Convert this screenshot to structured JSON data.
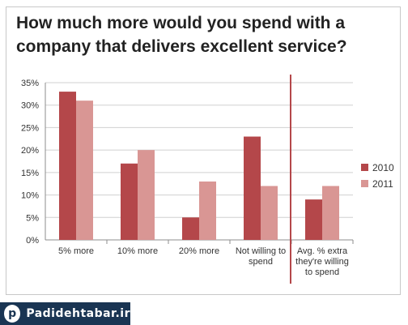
{
  "title": "How much more would you spend with a\ncompany that delivers excellent service?",
  "brand": {
    "logo_letter": "p",
    "text": "Padidehtabar.ir"
  },
  "chart_data": {
    "type": "bar",
    "categories": [
      [
        "5% more"
      ],
      [
        "10% more"
      ],
      [
        "20% more"
      ],
      [
        "Not willing to",
        "spend"
      ],
      [
        "Avg. % extra",
        "they're willing",
        "to spend"
      ]
    ],
    "series": [
      {
        "name": "2010",
        "values": [
          33,
          17,
          5,
          23,
          9
        ],
        "color": "#b4474a"
      },
      {
        "name": "2011",
        "values": [
          31,
          20,
          13,
          12,
          12
        ],
        "color": "#d99694"
      }
    ],
    "yticks": [
      "0%",
      "5%",
      "10%",
      "15%",
      "20%",
      "25%",
      "30%",
      "35%"
    ],
    "ylim": [
      0,
      35
    ],
    "grid": true,
    "divider_color": "#b4474a",
    "legend_position": "right"
  }
}
